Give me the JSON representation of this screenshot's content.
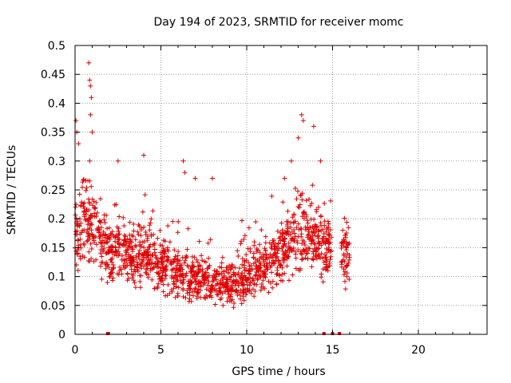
{
  "chart_data": {
    "type": "scatter",
    "title": "Day 194 of 2023, SRMTID for receiver momc",
    "xlabel": "GPS time / hours",
    "ylabel": "SRMTID / TECUs",
    "xlim": [
      0,
      24
    ],
    "ylim": [
      0,
      0.5
    ],
    "x_ticks": [
      "0",
      "5",
      "10",
      "15",
      "20"
    ],
    "y_ticks": [
      "0",
      "0.05",
      "0.1",
      "0.15",
      "0.2",
      "0.25",
      "0.3",
      "0.35",
      "0.4",
      "0.45",
      "0.5"
    ],
    "grid": true,
    "marker": "+",
    "color": "#e00000",
    "gap_markers_x": [
      1.9,
      14.5,
      15.0,
      15.4
    ],
    "trend": [
      [
        0.0,
        0.17
      ],
      [
        0.5,
        0.2
      ],
      [
        1.0,
        0.19
      ],
      [
        1.5,
        0.16
      ],
      [
        2.0,
        0.14
      ],
      [
        2.5,
        0.15
      ],
      [
        3.0,
        0.14
      ],
      [
        3.5,
        0.13
      ],
      [
        4.0,
        0.14
      ],
      [
        4.5,
        0.13
      ],
      [
        5.0,
        0.12
      ],
      [
        5.5,
        0.11
      ],
      [
        6.0,
        0.11
      ],
      [
        6.5,
        0.1
      ],
      [
        7.0,
        0.1
      ],
      [
        7.5,
        0.1
      ],
      [
        8.0,
        0.09
      ],
      [
        8.5,
        0.085
      ],
      [
        9.0,
        0.085
      ],
      [
        9.5,
        0.09
      ],
      [
        10.0,
        0.1
      ],
      [
        10.5,
        0.11
      ],
      [
        11.0,
        0.12
      ],
      [
        11.5,
        0.13
      ],
      [
        12.0,
        0.14
      ],
      [
        12.5,
        0.16
      ],
      [
        13.0,
        0.18
      ],
      [
        13.5,
        0.18
      ],
      [
        14.0,
        0.16
      ],
      [
        14.5,
        0.15
      ],
      [
        14.9,
        0.14
      ],
      [
        15.5,
        0.14
      ],
      [
        16.0,
        0.13
      ]
    ],
    "x_ranges": [
      [
        0.0,
        14.95
      ],
      [
        15.5,
        16.0
      ]
    ],
    "n_points": 1500,
    "outliers": [
      [
        0.05,
        0.37
      ],
      [
        0.1,
        0.35
      ],
      [
        0.2,
        0.33
      ],
      [
        0.8,
        0.47
      ],
      [
        0.85,
        0.44
      ],
      [
        0.9,
        0.43
      ],
      [
        0.95,
        0.41
      ],
      [
        0.9,
        0.38
      ],
      [
        1.0,
        0.35
      ],
      [
        0.85,
        0.3
      ],
      [
        2.5,
        0.3
      ],
      [
        4.0,
        0.31
      ],
      [
        6.3,
        0.3
      ],
      [
        6.4,
        0.28
      ],
      [
        7.0,
        0.27
      ],
      [
        12.6,
        0.3
      ],
      [
        13.0,
        0.34
      ],
      [
        13.2,
        0.38
      ],
      [
        13.3,
        0.37
      ],
      [
        13.9,
        0.36
      ],
      [
        14.3,
        0.3
      ],
      [
        12.2,
        0.27
      ],
      [
        8.0,
        0.27
      ]
    ]
  }
}
